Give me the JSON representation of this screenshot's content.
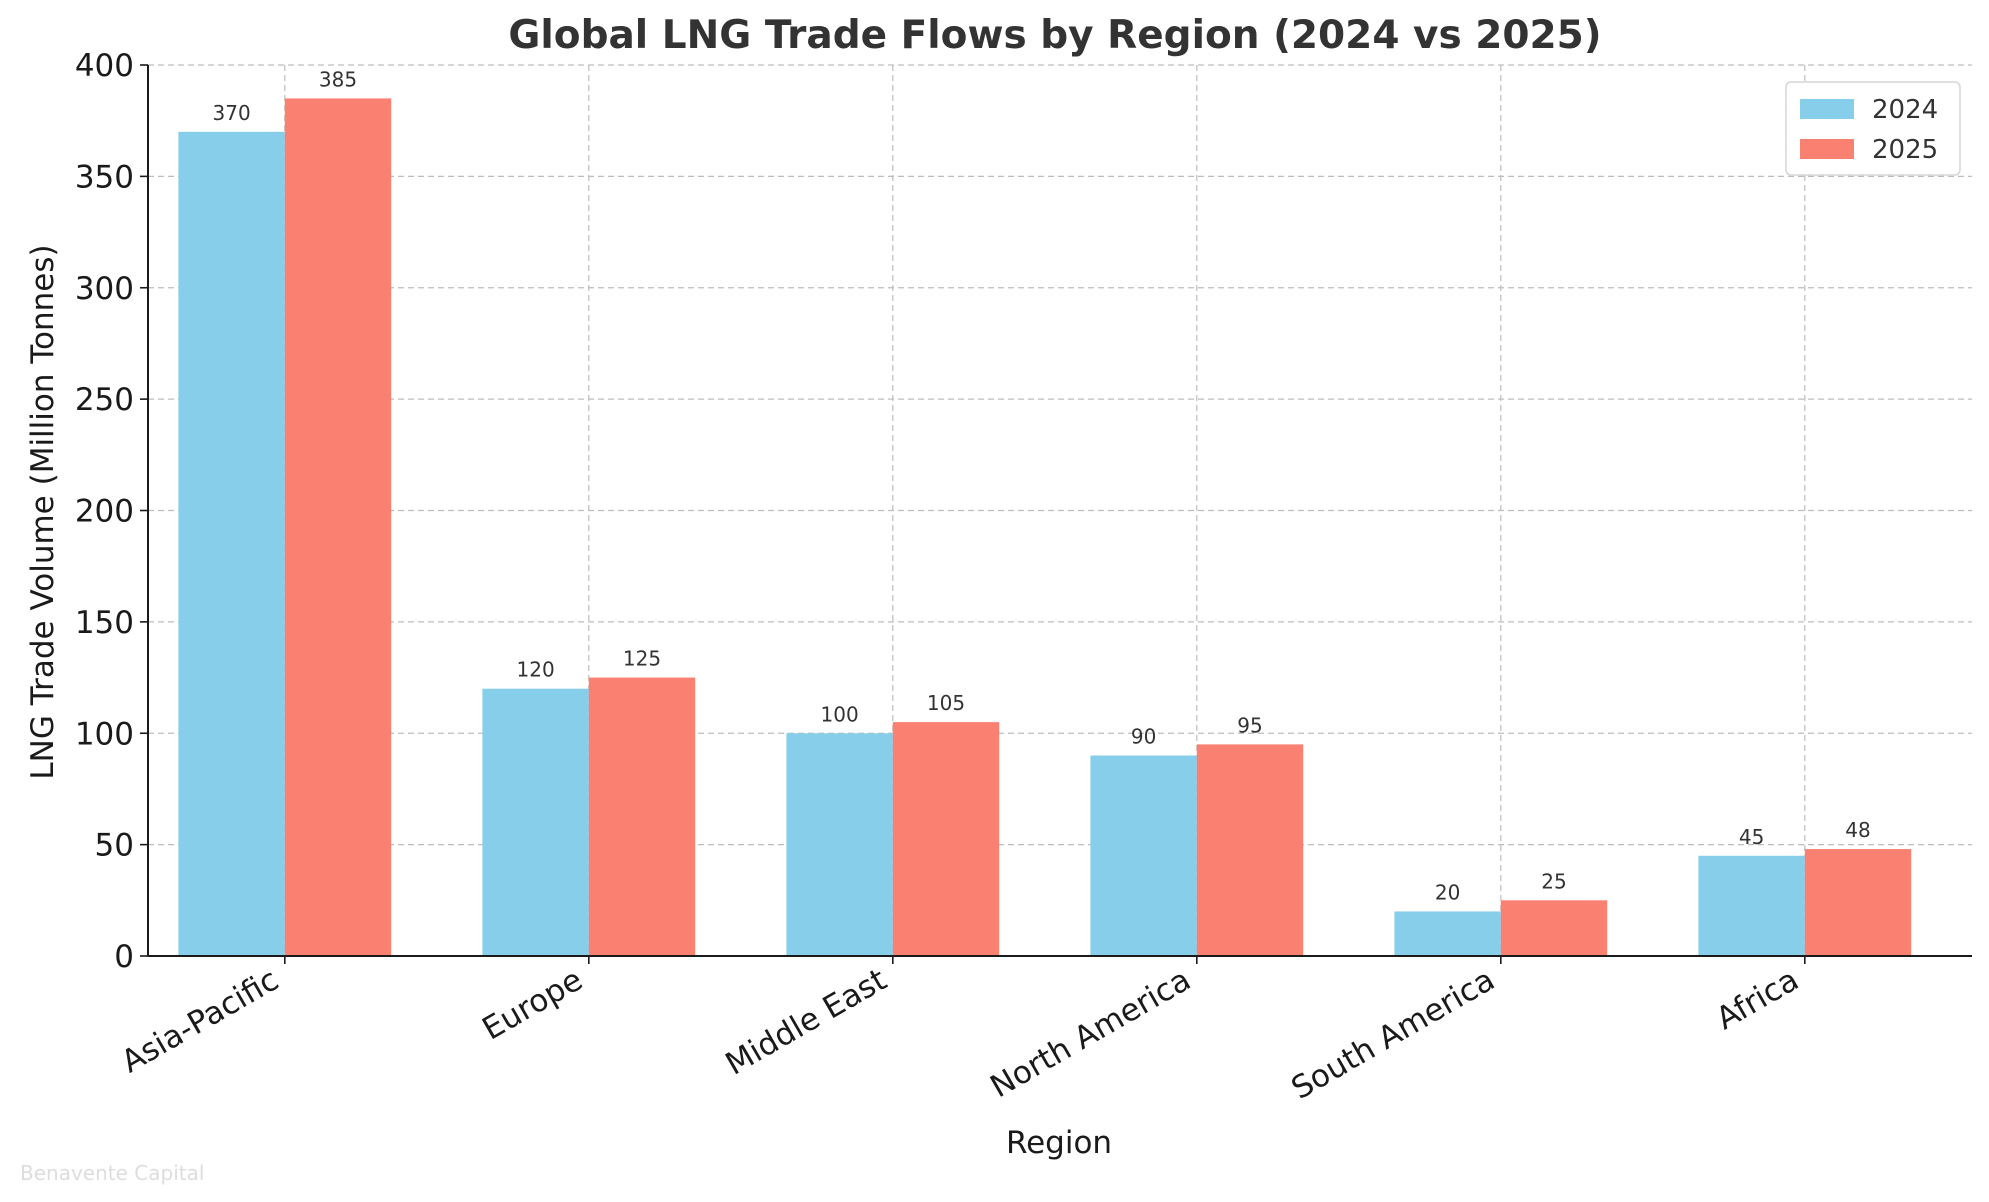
{
  "chart_data": {
    "type": "bar",
    "title": "Global LNG Trade Flows by Region (2024 vs 2025)",
    "xlabel": "Region",
    "ylabel": "LNG Trade Volume (Million Tonnes)",
    "categories": [
      "Asia-Pacific",
      "Europe",
      "Middle East",
      "North America",
      "South America",
      "Africa"
    ],
    "series": [
      {
        "name": "2024",
        "color": "#87ceeb",
        "values": [
          370,
          120,
          100,
          90,
          20,
          45
        ]
      },
      {
        "name": "2025",
        "color": "#fa8072",
        "values": [
          385,
          125,
          105,
          95,
          25,
          48
        ]
      }
    ],
    "ylim": [
      0,
      400
    ],
    "yticks": [
      0,
      50,
      100,
      150,
      200,
      250,
      300,
      350,
      400
    ],
    "grid": true,
    "legend_position": "top-right",
    "watermark": "Benavente Capital"
  }
}
